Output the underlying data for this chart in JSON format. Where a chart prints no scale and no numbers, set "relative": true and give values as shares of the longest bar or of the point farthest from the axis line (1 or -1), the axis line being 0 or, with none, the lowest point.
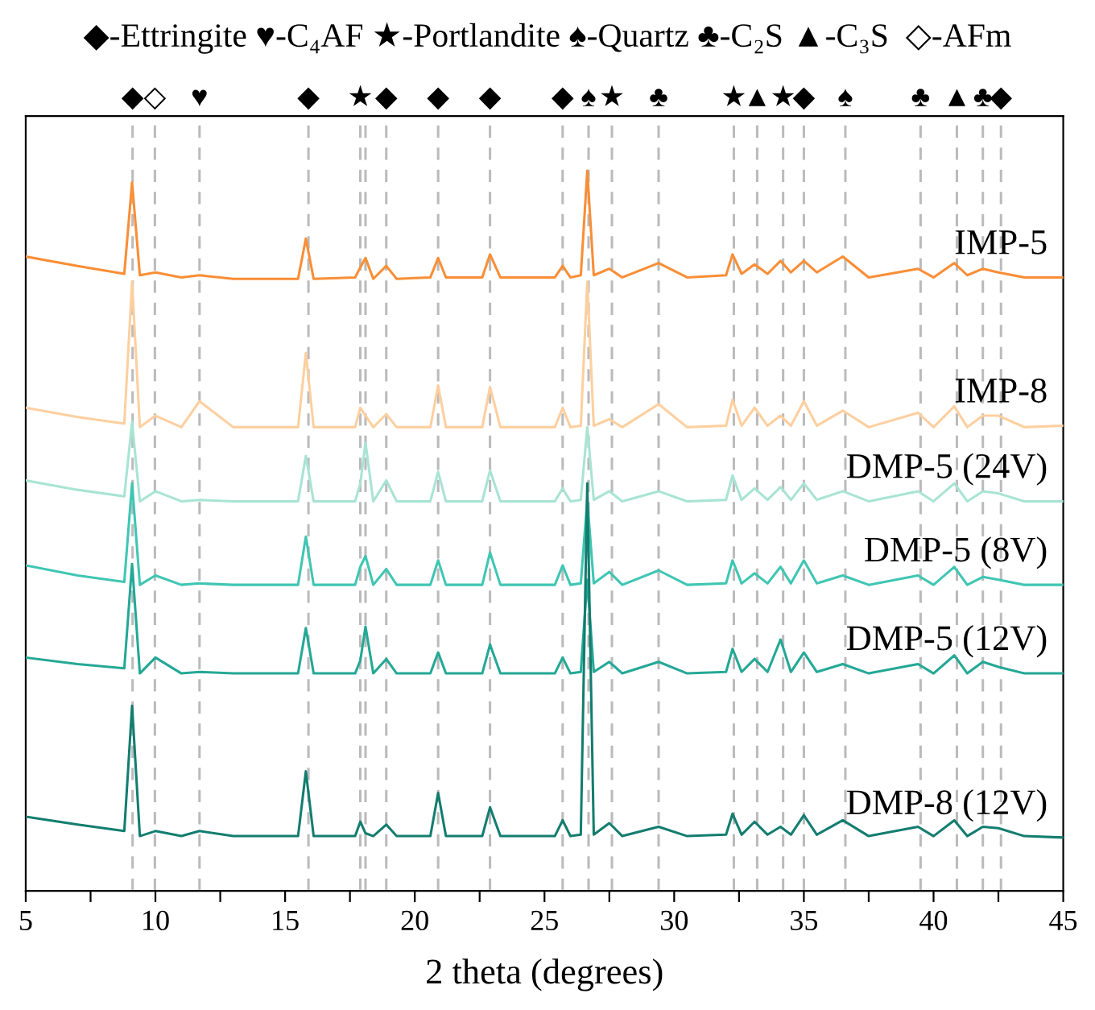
{
  "chart_data": {
    "type": "line",
    "relative": true,
    "xlabel": "2 theta (degrees)",
    "annotations": [
      "◆-Ettringite ♥-C₄AF ★-Portlandite ♠-Quartz ♣-C₂S ▲-C₃S  ◇-AFm"
    ],
    "xlim": [
      5,
      45
    ],
    "xticks": [
      5,
      {
        "value": 7.5,
        "label": null
      },
      10,
      {
        "value": 12.5,
        "label": null
      },
      15,
      {
        "value": 17.5,
        "label": null
      },
      20,
      {
        "value": 22.5,
        "label": null
      },
      25,
      {
        "value": 27.5,
        "label": null
      },
      30,
      {
        "value": 32.5,
        "label": null
      },
      35,
      {
        "value": 37.5,
        "label": null
      },
      40,
      {
        "value": 42.5,
        "label": null
      },
      45
    ],
    "x": [
      5,
      7,
      8.8,
      9.1,
      9.4,
      10.0,
      11.0,
      11.7,
      13,
      15.5,
      15.8,
      16.1,
      17.7,
      17.9,
      18.1,
      18.4,
      18.9,
      19.3,
      20.6,
      20.9,
      21.2,
      22.6,
      22.9,
      23.3,
      25.4,
      25.7,
      26.0,
      26.4,
      26.65,
      26.9,
      27.5,
      28.0,
      29.4,
      30.5,
      32.0,
      32.25,
      32.6,
      33.1,
      33.6,
      34.1,
      34.5,
      35.0,
      35.5,
      36.5,
      37.5,
      39.4,
      40.0,
      40.8,
      41.3,
      41.9,
      42.5,
      43.5,
      45
    ],
    "series": [
      {
        "name": "IMP-5",
        "color": "#f98e36",
        "values": [
          0.881,
          0.868,
          0.857,
          0.984,
          0.855,
          0.859,
          0.852,
          0.855,
          0.85,
          0.85,
          0.906,
          0.85,
          0.852,
          0.866,
          0.879,
          0.85,
          0.868,
          0.85,
          0.852,
          0.879,
          0.852,
          0.852,
          0.884,
          0.852,
          0.852,
          0.868,
          0.852,
          0.855,
          1.0,
          0.855,
          0.864,
          0.852,
          0.872,
          0.852,
          0.855,
          0.884,
          0.857,
          0.87,
          0.857,
          0.875,
          0.859,
          0.875,
          0.859,
          0.881,
          0.852,
          0.864,
          0.852,
          0.872,
          0.855,
          0.864,
          0.859,
          0.852,
          0.852
        ]
      },
      {
        "name": "IMP-8",
        "color": "#fdcf9f",
        "values": [
          0.671,
          0.658,
          0.649,
          0.846,
          0.644,
          0.66,
          0.644,
          0.68,
          0.644,
          0.644,
          0.747,
          0.644,
          0.644,
          0.671,
          0.66,
          0.644,
          0.662,
          0.644,
          0.644,
          0.702,
          0.644,
          0.644,
          0.7,
          0.644,
          0.644,
          0.671,
          0.644,
          0.646,
          0.846,
          0.646,
          0.655,
          0.644,
          0.676,
          0.644,
          0.646,
          0.682,
          0.646,
          0.671,
          0.646,
          0.66,
          0.646,
          0.68,
          0.646,
          0.667,
          0.644,
          0.664,
          0.644,
          0.673,
          0.644,
          0.66,
          0.66,
          0.644,
          0.646
        ]
      },
      {
        "name": "DMP-5 (24V)",
        "color": "#a8e4d3",
        "values": [
          0.57,
          0.557,
          0.548,
          0.651,
          0.541,
          0.555,
          0.541,
          0.543,
          0.541,
          0.541,
          0.604,
          0.541,
          0.541,
          0.566,
          0.622,
          0.541,
          0.57,
          0.541,
          0.541,
          0.582,
          0.541,
          0.541,
          0.584,
          0.541,
          0.541,
          0.559,
          0.541,
          0.543,
          0.644,
          0.543,
          0.555,
          0.541,
          0.555,
          0.541,
          0.543,
          0.577,
          0.543,
          0.559,
          0.543,
          0.561,
          0.543,
          0.566,
          0.543,
          0.555,
          0.541,
          0.555,
          0.541,
          0.566,
          0.541,
          0.555,
          0.552,
          0.541,
          0.541
        ]
      },
      {
        "name": "DMP-5 (8V)",
        "color": "#3fc6b3",
        "values": [
          0.452,
          0.438,
          0.429,
          0.566,
          0.425,
          0.438,
          0.425,
          0.427,
          0.425,
          0.425,
          0.492,
          0.425,
          0.425,
          0.45,
          0.465,
          0.425,
          0.447,
          0.425,
          0.425,
          0.459,
          0.425,
          0.425,
          0.47,
          0.425,
          0.425,
          0.452,
          0.425,
          0.427,
          0.544,
          0.427,
          0.443,
          0.425,
          0.445,
          0.425,
          0.427,
          0.459,
          0.427,
          0.441,
          0.427,
          0.45,
          0.427,
          0.459,
          0.427,
          0.438,
          0.425,
          0.438,
          0.425,
          0.45,
          0.425,
          0.436,
          0.432,
          0.425,
          0.425
        ]
      },
      {
        "name": "DMP-5 (12V)",
        "color": "#24a896",
        "values": [
          0.324,
          0.315,
          0.309,
          0.454,
          0.302,
          0.324,
          0.302,
          0.304,
          0.302,
          0.302,
          0.365,
          0.302,
          0.302,
          0.32,
          0.367,
          0.302,
          0.322,
          0.302,
          0.302,
          0.331,
          0.302,
          0.302,
          0.342,
          0.302,
          0.302,
          0.324,
          0.302,
          0.304,
          0.432,
          0.304,
          0.318,
          0.302,
          0.318,
          0.302,
          0.304,
          0.336,
          0.304,
          0.322,
          0.304,
          0.349,
          0.304,
          0.331,
          0.304,
          0.315,
          0.302,
          0.315,
          0.302,
          0.327,
          0.302,
          0.318,
          0.311,
          0.302,
          0.302
        ]
      },
      {
        "name": "DMP-8 (12V)",
        "color": "#137d6f",
        "values": [
          0.103,
          0.092,
          0.083,
          0.257,
          0.076,
          0.083,
          0.076,
          0.083,
          0.076,
          0.076,
          0.166,
          0.076,
          0.076,
          0.096,
          0.08,
          0.076,
          0.092,
          0.076,
          0.076,
          0.136,
          0.076,
          0.076,
          0.116,
          0.076,
          0.076,
          0.098,
          0.076,
          0.078,
          0.566,
          0.078,
          0.094,
          0.076,
          0.089,
          0.076,
          0.078,
          0.107,
          0.078,
          0.096,
          0.078,
          0.089,
          0.078,
          0.105,
          0.078,
          0.098,
          0.076,
          0.089,
          0.076,
          0.098,
          0.076,
          0.089,
          0.087,
          0.076,
          0.074
        ]
      }
    ],
    "ref_lines": [
      {
        "axis": "x",
        "value": 9.12,
        "label": "◆"
      },
      {
        "axis": "x",
        "value": 9.98,
        "label": "◇"
      },
      {
        "axis": "x",
        "value": 11.7,
        "label": "♥"
      },
      {
        "axis": "x",
        "value": 15.9,
        "label": "◆"
      },
      {
        "axis": "x",
        "value": 17.9,
        "label": "★"
      },
      {
        "axis": "x",
        "value": 18.1,
        "label": null
      },
      {
        "axis": "x",
        "value": 18.9,
        "label": "◆"
      },
      {
        "axis": "x",
        "value": 20.9,
        "label": "◆"
      },
      {
        "axis": "x",
        "value": 22.9,
        "label": "◆"
      },
      {
        "axis": "x",
        "value": 25.7,
        "label": "◆"
      },
      {
        "axis": "x",
        "value": 26.7,
        "label": "♠"
      },
      {
        "axis": "x",
        "value": 27.6,
        "label": "★"
      },
      {
        "axis": "x",
        "value": 29.4,
        "label": "♣"
      },
      {
        "axis": "x",
        "value": 32.3,
        "label": "★"
      },
      {
        "axis": "x",
        "value": 33.2,
        "label": "▲"
      },
      {
        "axis": "x",
        "value": 34.2,
        "label": "★"
      },
      {
        "axis": "x",
        "value": 35.0,
        "label": "◆"
      },
      {
        "axis": "x",
        "value": 36.6,
        "label": "♠"
      },
      {
        "axis": "x",
        "value": 39.5,
        "label": "♣"
      },
      {
        "axis": "x",
        "value": 40.9,
        "label": "▲"
      },
      {
        "axis": "x",
        "value": 41.9,
        "label": "♣"
      },
      {
        "axis": "x",
        "value": 42.6,
        "label": "◆"
      }
    ]
  }
}
